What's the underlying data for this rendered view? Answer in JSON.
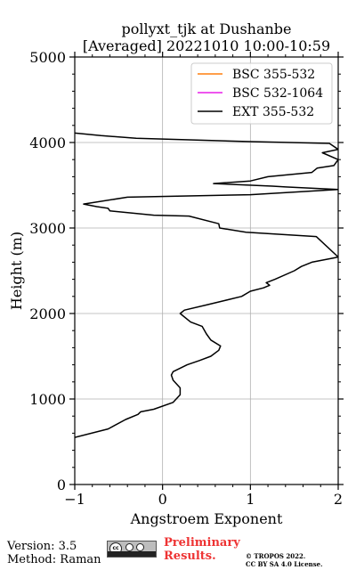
{
  "chart_data": {
    "type": "line",
    "title_line1": "pollyxt_tjk at Dushanbe",
    "title_line2": "[Averaged] 20221010 10:00-10:59",
    "xlabel": "Angstroem Exponent",
    "ylabel": "Height (m)",
    "xlim": [
      -1,
      2
    ],
    "ylim": [
      0,
      5000
    ],
    "x_ticks": [
      -1,
      0,
      1,
      2
    ],
    "x_tick_labels": [
      "−1",
      "0",
      "1",
      "2"
    ],
    "y_ticks": [
      0,
      1000,
      2000,
      3000,
      4000,
      5000
    ],
    "y_tick_labels": [
      "0",
      "1000",
      "2000",
      "3000",
      "4000",
      "5000"
    ],
    "grid": true,
    "legend_position": "top-right",
    "series": [
      {
        "name": "BSC 355-532",
        "color": "#ff7f0e",
        "x": [],
        "y": []
      },
      {
        "name": "BSC 532-1064",
        "color": "#e81ee8",
        "x": [],
        "y": []
      },
      {
        "name": "EXT 355-532",
        "color": "#000000",
        "x": [
          -1.0,
          -0.62,
          -0.42,
          -0.28,
          -0.25,
          -0.1,
          0.12,
          0.2,
          0.2,
          0.12,
          0.1,
          0.12,
          0.28,
          0.42,
          0.55,
          0.64,
          0.66,
          0.55,
          0.5,
          0.45,
          0.32,
          0.2,
          0.25,
          0.5,
          0.7,
          0.9,
          1.0,
          1.15,
          1.22,
          1.18,
          1.28,
          1.5,
          1.58,
          1.7,
          1.95,
          2.0,
          1.75,
          0.95,
          0.65,
          0.64,
          0.3,
          -0.1,
          -0.6,
          -0.62,
          -0.75,
          -0.9,
          -0.4,
          1.0,
          2.0,
          1.4,
          1.25,
          0.58,
          1.0,
          1.2,
          1.7,
          1.76,
          1.95,
          2.0,
          1.82,
          2.0,
          1.9,
          1.0,
          -0.3,
          -0.7,
          -1.0
        ],
        "y": [
          550,
          650,
          760,
          820,
          850,
          880,
          960,
          1050,
          1130,
          1220,
          1280,
          1320,
          1400,
          1450,
          1500,
          1570,
          1620,
          1690,
          1760,
          1850,
          1900,
          2000,
          2040,
          2100,
          2150,
          2200,
          2260,
          2300,
          2330,
          2360,
          2400,
          2500,
          2550,
          2600,
          2650,
          2660,
          2900,
          2950,
          3000,
          3050,
          3140,
          3150,
          3200,
          3230,
          3250,
          3280,
          3360,
          3390,
          3450,
          3480,
          3490,
          3520,
          3550,
          3600,
          3650,
          3700,
          3730,
          3800,
          3880,
          3920,
          3990,
          4010,
          4050,
          4080,
          4110
        ]
      }
    ]
  },
  "footer": {
    "version": "Version: 3.5",
    "method": "Method: Raman",
    "preliminary_line1": "Preliminary",
    "preliminary_line2": "Results.",
    "copyright_line1": "© TROPOS 2022.",
    "copyright_line2": "CC BY SA 4.0 License."
  }
}
